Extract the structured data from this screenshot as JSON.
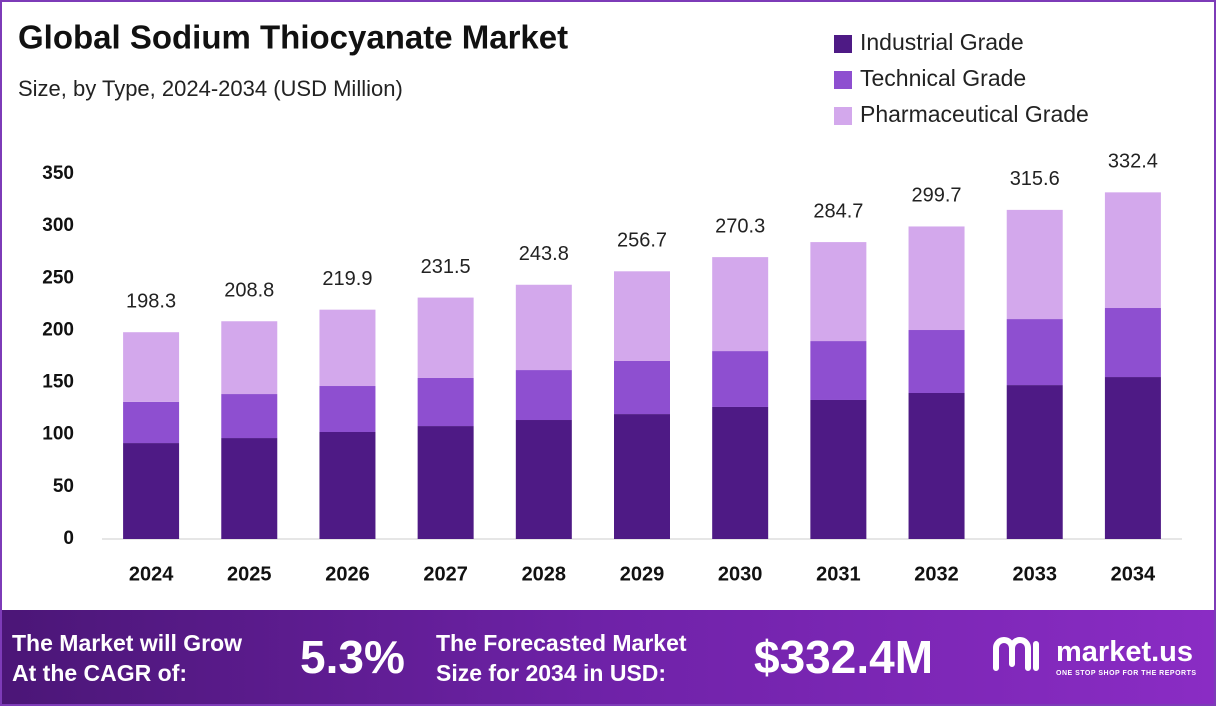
{
  "chart_data": {
    "type": "stacked_bar",
    "title": "Global Sodium Thiocyanate Market",
    "subtitle": "Size, by Type, 2024-2034 (USD Million)",
    "categories": [
      "2024",
      "2025",
      "2026",
      "2027",
      "2028",
      "2029",
      "2030",
      "2031",
      "2032",
      "2033",
      "2034"
    ],
    "series": [
      {
        "name": "Industrial Grade",
        "color": "#4e1a85",
        "values": [
          92.0,
          96.8,
          102.6,
          108.3,
          114.1,
          119.8,
          126.6,
          133.3,
          140.0,
          147.6,
          155.3
        ]
      },
      {
        "name": "Technical Grade",
        "color": "#8e4fd0",
        "values": [
          39.5,
          42.2,
          44.1,
          46.1,
          47.9,
          50.9,
          53.6,
          56.5,
          60.4,
          63.3,
          66.2
        ]
      },
      {
        "name": "Pharmaceutical Grade",
        "color": "#d3a8ec",
        "values": [
          66.8,
          69.8,
          73.2,
          77.1,
          81.8,
          86.0,
          90.1,
          94.9,
          99.3,
          104.7,
          110.9
        ]
      }
    ],
    "totals": [
      198.3,
      208.8,
      219.9,
      231.5,
      243.8,
      256.7,
      270.3,
      284.7,
      299.7,
      315.6,
      332.4
    ],
    "ylim": [
      0,
      350
    ],
    "yticks": [
      0,
      50,
      100,
      150,
      200,
      250,
      300,
      350
    ],
    "legend": "top-right",
    "grid": false
  },
  "footer": {
    "cagr_caption": [
      "The Market will Grow",
      "At the CAGR of:"
    ],
    "cagr_value": "5.3%",
    "forecast_caption": [
      "The Forecasted Market",
      "Size for 2034 in USD:"
    ],
    "forecast_value": "$332.4M",
    "brand": "market.us",
    "tagline": "ONE STOP SHOP FOR THE REPORTS"
  }
}
